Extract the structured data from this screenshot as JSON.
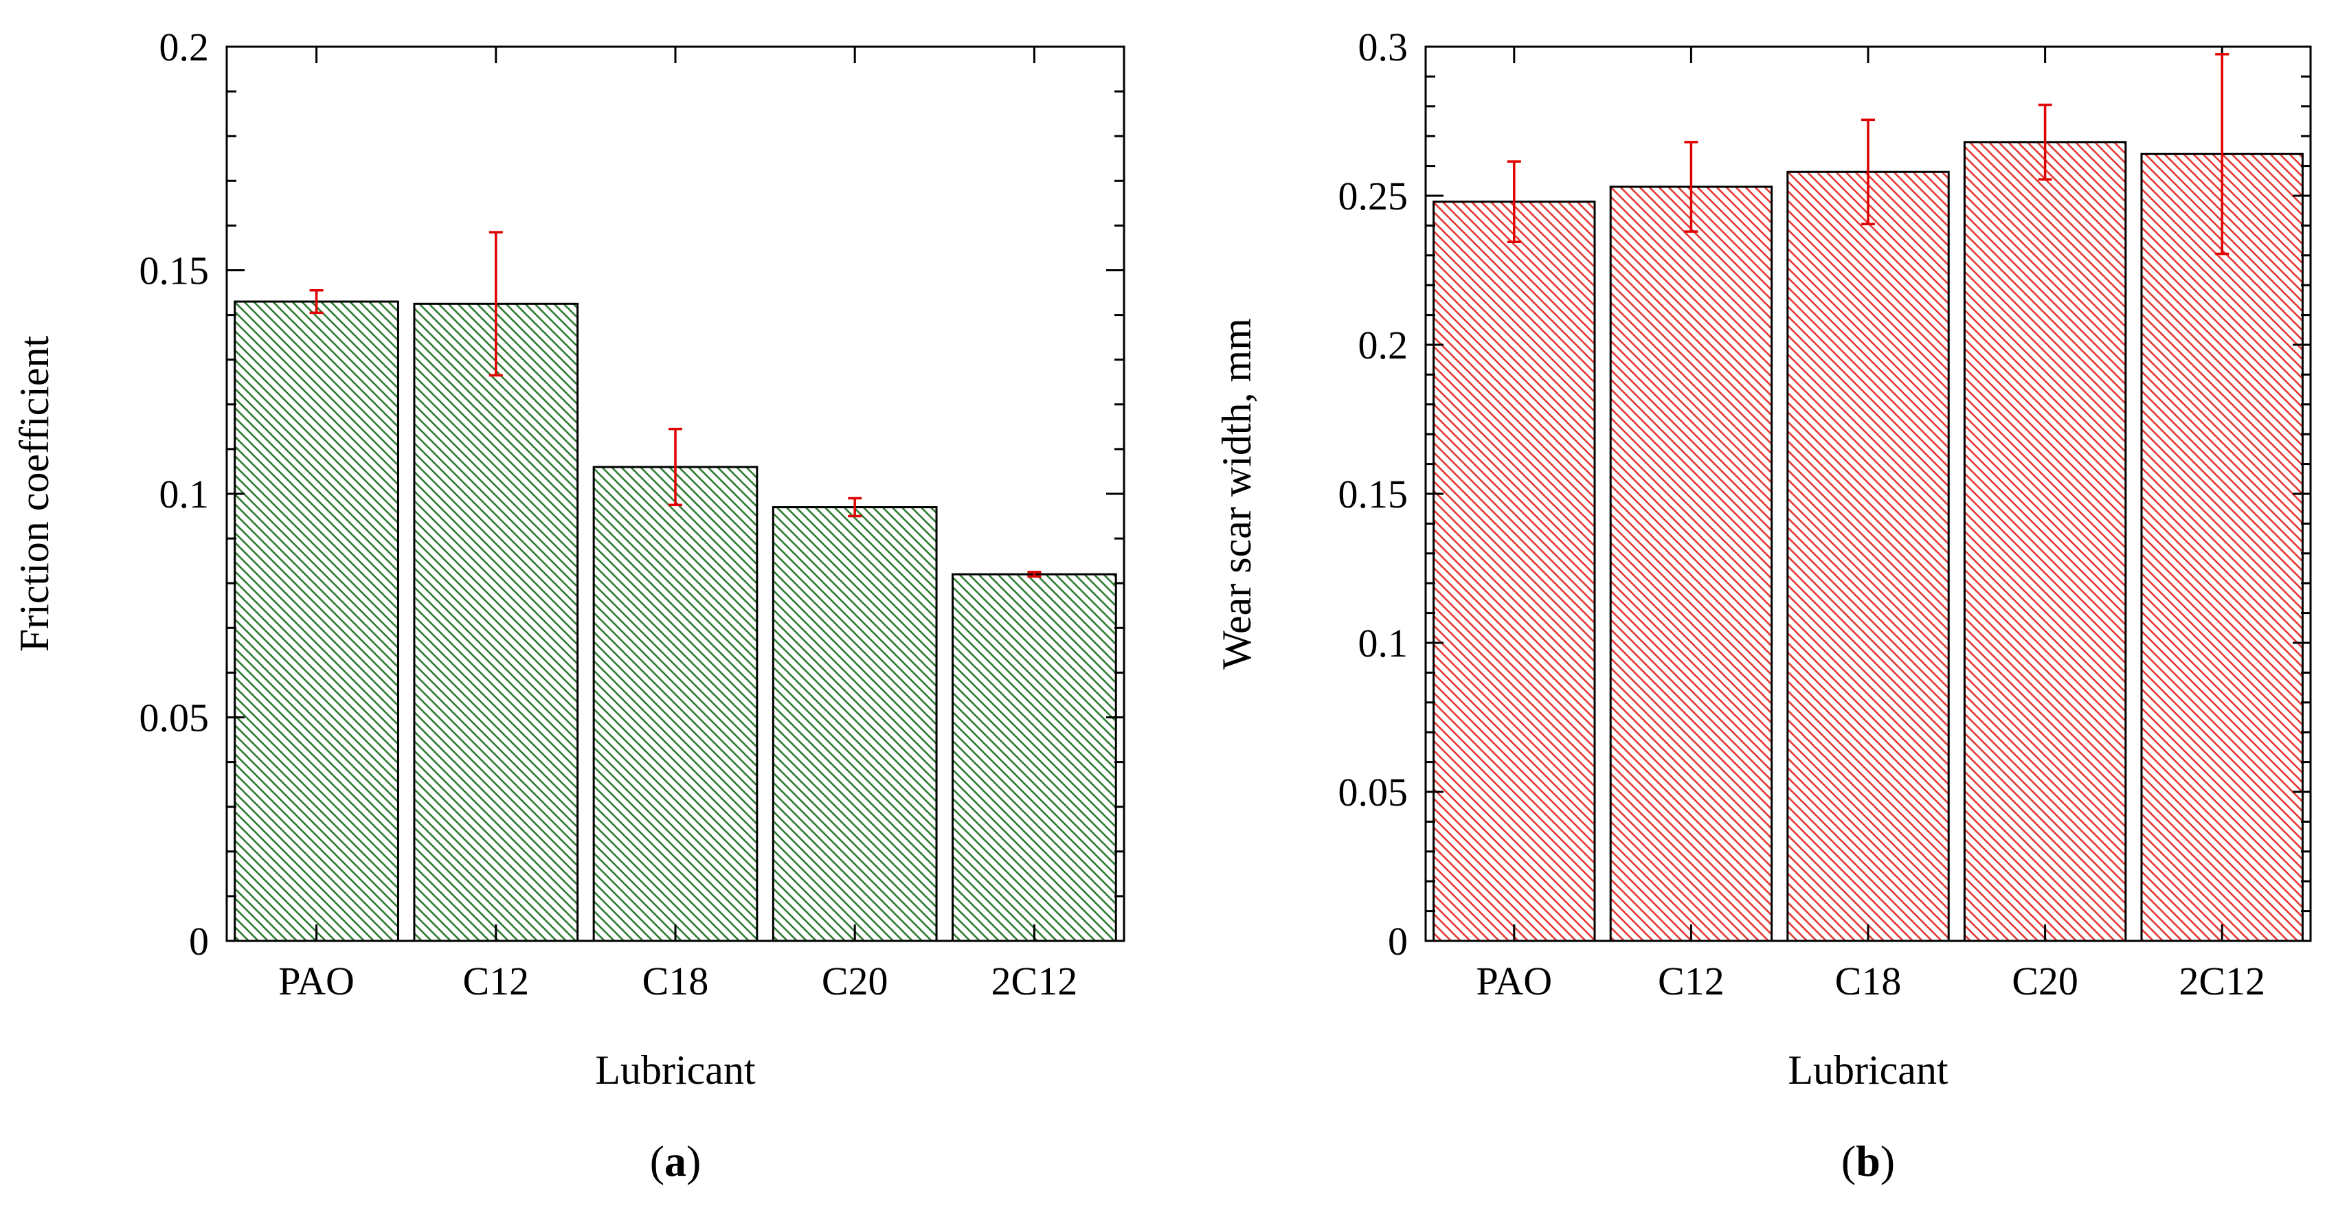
{
  "chart_data": [
    {
      "type": "bar",
      "panel_label": "a",
      "title": "",
      "xlabel": "Lubricant",
      "ylabel": "Friction coefficient",
      "categories": [
        "PAO",
        "C12",
        "C18",
        "C20",
        "2C12"
      ],
      "values": [
        0.143,
        0.1425,
        0.106,
        0.097,
        0.082
      ],
      "errors": [
        0.0025,
        0.016,
        0.0085,
        0.002,
        0.0005
      ],
      "ylim": [
        0,
        0.2
      ],
      "yticks": [
        0,
        0.05,
        0.1,
        0.15,
        0.2
      ],
      "ytick_labels": [
        "0",
        "0.05",
        "0.1",
        "0.15",
        "0.2"
      ],
      "grid": false,
      "bar_color": "#2e7d32",
      "error_color": "#e00000",
      "pattern": "diagonal-hatch"
    },
    {
      "type": "bar",
      "panel_label": "b",
      "title": "",
      "xlabel": "Lubricant",
      "ylabel": "Wear scar width, mm",
      "categories": [
        "PAO",
        "C12",
        "C18",
        "C20",
        "2C12"
      ],
      "values": [
        0.248,
        0.253,
        0.258,
        0.268,
        0.264
      ],
      "errors": [
        0.0135,
        0.015,
        0.0175,
        0.0125,
        0.0335
      ],
      "ylim": [
        0,
        0.3
      ],
      "yticks": [
        0,
        0.05,
        0.1,
        0.15,
        0.2,
        0.25,
        0.3
      ],
      "ytick_labels": [
        "0",
        "0.05",
        "0.1",
        "0.15",
        "0.2",
        "0.25",
        "0.3"
      ],
      "grid": false,
      "bar_color": "#e53935",
      "error_color": "#e00000",
      "pattern": "diagonal-hatch"
    }
  ]
}
